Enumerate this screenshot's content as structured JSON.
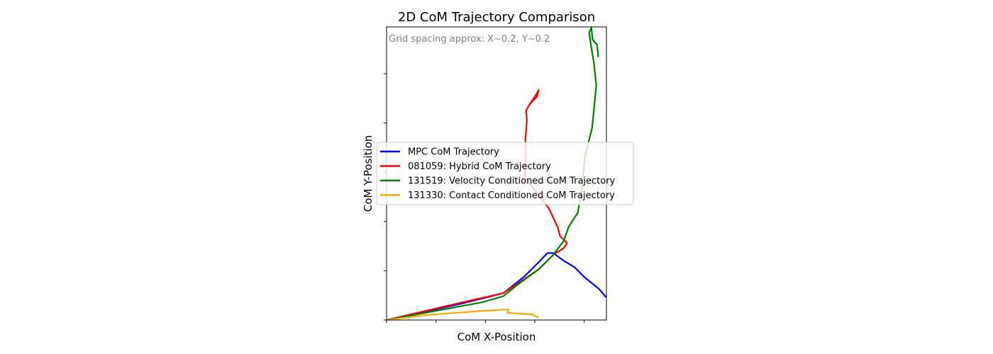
{
  "chart_data": {
    "type": "line",
    "title": "2D CoM Trajectory Comparison",
    "xlabel": "CoM X-Position",
    "ylabel": "CoM Y-Position",
    "annotation": "Grid spacing approx: X~0.2, Y~0.2",
    "xlim": [
      0,
      0.89
    ],
    "ylim": [
      0,
      1.19
    ],
    "xticks": [
      0,
      0.2,
      0.4,
      0.6,
      0.8
    ],
    "yticks": [
      0,
      0.2,
      0.4,
      0.6,
      0.8,
      1.0
    ],
    "legend": "center",
    "series": [
      {
        "name": "MPC CoM Trajectory",
        "color": "#0000ff",
        "x": [
          0,
          0.158,
          0.301,
          0.473,
          0.559,
          0.616,
          0.651,
          0.674,
          0.717,
          0.76,
          0.803,
          0.86,
          0.889
        ],
        "values": [
          0,
          0.034,
          0.066,
          0.109,
          0.178,
          0.235,
          0.272,
          0.272,
          0.241,
          0.215,
          0.172,
          0.126,
          0.092
        ]
      },
      {
        "name": "081059: Hybrid CoM Trajectory",
        "color": "#ff0000",
        "x": [
          0,
          0.158,
          0.33,
          0.473,
          0.545,
          0.616,
          0.674,
          0.717,
          0.731,
          0.702,
          0.694,
          0.659,
          0.616,
          0.559,
          0.562,
          0.562,
          0.568,
          0.565,
          0.582,
          0.602,
          0.616,
          0.608,
          0.576
        ],
        "values": [
          0,
          0.037,
          0.077,
          0.109,
          0.158,
          0.206,
          0.264,
          0.292,
          0.313,
          0.341,
          0.373,
          0.45,
          0.508,
          0.579,
          0.651,
          0.737,
          0.809,
          0.852,
          0.88,
          0.909,
          0.935,
          0.906,
          0.872
        ]
      },
      {
        "name": "131519: Velocity Conditioned CoM Trajectory",
        "color": "#008000",
        "x": [
          0,
          0.215,
          0.387,
          0.473,
          0.53,
          0.616,
          0.674,
          0.717,
          0.737,
          0.774,
          0.789,
          0.803,
          0.832,
          0.849,
          0.84,
          0.826,
          0.82,
          0.829,
          0.834,
          0.852,
          0.857
        ],
        "values": [
          0,
          0.04,
          0.072,
          0.097,
          0.143,
          0.206,
          0.264,
          0.321,
          0.378,
          0.436,
          0.522,
          0.665,
          0.78,
          0.952,
          1.038,
          1.124,
          1.167,
          1.187,
          1.138,
          1.118,
          1.067
        ]
      },
      {
        "name": "131330: Contact Conditioned CoM Trajectory",
        "color": "#ffa500",
        "x": [
          0,
          0.158,
          0.387,
          0.493,
          0.49,
          0.588,
          0.616
        ],
        "values": [
          0,
          0.02,
          0.037,
          0.043,
          0.029,
          0.023,
          0.009
        ]
      }
    ]
  }
}
